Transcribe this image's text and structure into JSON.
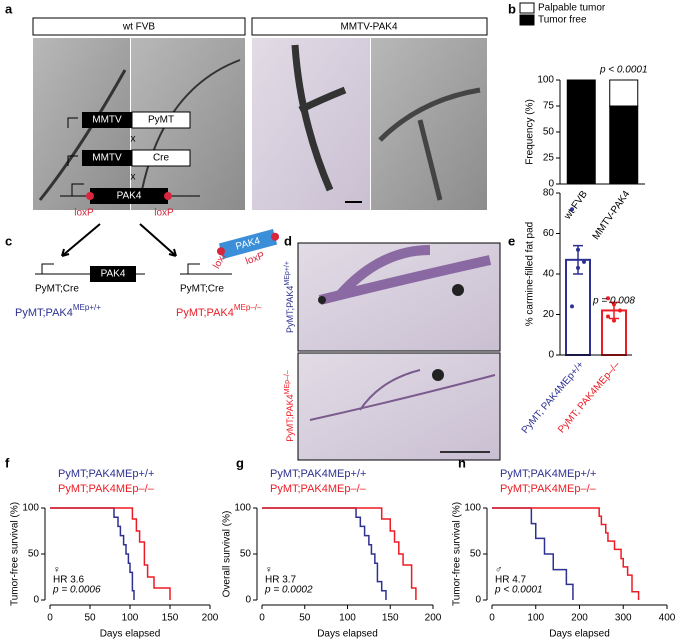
{
  "panel_labels": [
    "a",
    "b",
    "c",
    "d",
    "e",
    "f",
    "g",
    "h"
  ],
  "panel_a": {
    "headers": [
      "wt FVB",
      "MMTV-PAK4"
    ]
  },
  "panel_c": {
    "mmtv_1": "MMTV",
    "pymt": "PyMT",
    "cross_1": "x",
    "mmtv_2": "MMTV",
    "cre": "Cre",
    "cross_2": "x",
    "pak4_floxed": "PAK4",
    "loxp_1": "loxP",
    "loxp_2": "loxP",
    "left_driver": "PyMT;Cre",
    "left_pak4": "PAK4",
    "right_driver": "PyMT;Cre",
    "excised_pak4": "PAK4",
    "loxp_3": "loxP",
    "loxp_4": "loxP",
    "genotype_wt": {
      "base": "PyMT;PAK4",
      "sup": "MEp+/+"
    },
    "genotype_ko": {
      "base": "PyMT;PAK4",
      "sup": "MEp–/–"
    }
  },
  "panel_d": {
    "genotype_wt": {
      "base": "PyMT;PAK4",
      "sup": "MEp+/+"
    },
    "genotype_ko": {
      "base": "PyMT;PAK4",
      "sup": "MEp–/–"
    }
  },
  "chart_data": [
    {
      "type": "stacked_bar",
      "ylabel": "Frequency (%)",
      "categories": [
        "wt FVB",
        "MMTV-PAK4"
      ],
      "series": [
        {
          "name": "Tumor free",
          "color": "#000000",
          "values": [
            100,
            75
          ]
        },
        {
          "name": "Palpable tumor",
          "color": "#ffffff",
          "values": [
            0,
            25
          ]
        }
      ],
      "ylim": [
        0,
        100
      ],
      "yticks": [
        0,
        25,
        50,
        75,
        100
      ],
      "annotation": "p < 0.0001"
    },
    {
      "type": "bar_dot",
      "ylabel": "% carmine-filled fat pad",
      "categories": [
        "PyMT; PAK4MEp+/+",
        "PyMT; PAK4MEp–/–"
      ],
      "colors": [
        "#2e3192",
        "#ed1c24"
      ],
      "values": [
        47,
        22
      ],
      "errors": [
        7,
        4
      ],
      "points": [
        [
          72,
          52,
          46,
          24,
          43
        ],
        [
          28,
          25,
          22,
          19,
          17
        ]
      ],
      "ylim": [
        0,
        80
      ],
      "yticks": [
        0,
        20,
        40,
        60,
        80
      ],
      "annotation": "p = 0.008"
    },
    {
      "type": "step",
      "ylabel": "Tumor-free survival (%)",
      "xlabel": "Days elapsed",
      "series": [
        {
          "name": "PyMT;PAK4MEp+/+",
          "color": "#2e3192",
          "x": [
            0,
            80,
            85,
            88,
            92,
            95,
            98,
            100,
            103,
            105
          ],
          "values": [
            100,
            90,
            80,
            70,
            60,
            50,
            40,
            30,
            10,
            0
          ]
        },
        {
          "name": "PyMT;PAK4MEp–/–",
          "color": "#ed1c24",
          "x": [
            0,
            103,
            108,
            112,
            118,
            122,
            130,
            150
          ],
          "values": [
            100,
            88,
            75,
            63,
            38,
            25,
            13,
            0
          ]
        }
      ],
      "xlim": [
        0,
        200
      ],
      "xticks": [
        0,
        50,
        100,
        150,
        200
      ],
      "ylim": [
        0,
        100
      ],
      "yticks": [
        0,
        50,
        100
      ],
      "annotations": [
        "♀",
        "HR 3.6",
        "p = 0.0006"
      ]
    },
    {
      "type": "step",
      "ylabel": "Overall survival (%)",
      "xlabel": "Days elapsed",
      "series": [
        {
          "name": "PyMT;PAK4MEp+/+",
          "color": "#2e3192",
          "x": [
            0,
            110,
            115,
            120,
            125,
            128,
            132,
            135,
            140,
            145
          ],
          "values": [
            100,
            90,
            80,
            70,
            60,
            50,
            40,
            20,
            10,
            0
          ]
        },
        {
          "name": "PyMT;PAK4MEp–/–",
          "color": "#ed1c24",
          "x": [
            0,
            140,
            150,
            155,
            160,
            165,
            175,
            180
          ],
          "values": [
            100,
            88,
            75,
            63,
            50,
            38,
            13,
            0
          ]
        }
      ],
      "xlim": [
        0,
        200
      ],
      "xticks": [
        0,
        50,
        100,
        150,
        200
      ],
      "ylim": [
        0,
        100
      ],
      "yticks": [
        0,
        50,
        100
      ],
      "annotations": [
        "♀",
        "HR 3.7",
        "p = 0.0002"
      ]
    },
    {
      "type": "step",
      "ylabel": "Tumor-free survival (%)",
      "xlabel": "Days elapsed",
      "series": [
        {
          "name": "PyMT;PAK4MEp+/+",
          "color": "#2e3192",
          "x": [
            0,
            90,
            100,
            120,
            140,
            170,
            185
          ],
          "values": [
            100,
            83,
            67,
            50,
            33,
            17,
            0
          ]
        },
        {
          "name": "PyMT;PAK4MEp–/–",
          "color": "#ed1c24",
          "x": [
            0,
            245,
            250,
            260,
            265,
            280,
            295,
            300,
            310,
            320,
            335
          ],
          "values": [
            100,
            91,
            82,
            73,
            64,
            55,
            45,
            36,
            27,
            9,
            0
          ]
        }
      ],
      "xlim": [
        0,
        400
      ],
      "xticks": [
        0,
        100,
        200,
        300,
        400
      ],
      "ylim": [
        0,
        100
      ],
      "yticks": [
        0,
        50,
        100
      ],
      "annotations": [
        "♂",
        "HR 4.7",
        "p < 0.0001"
      ]
    }
  ]
}
